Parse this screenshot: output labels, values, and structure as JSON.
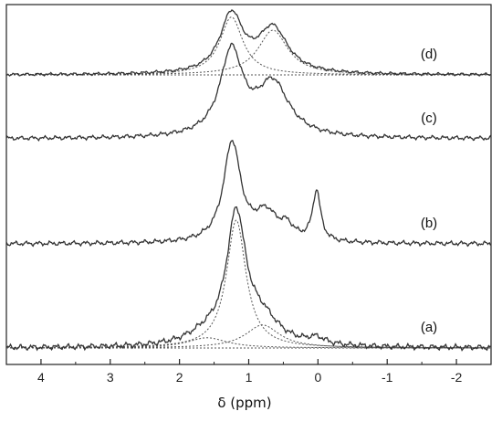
{
  "chart_data": {
    "type": "line",
    "xlabel": "δ (ppm)",
    "xlim": [
      4.5,
      -2.5
    ],
    "x_reversed": true,
    "xticks": [
      4,
      3,
      2,
      1,
      0,
      -1,
      -2
    ],
    "xtick_labels": [
      "4",
      "3",
      "2",
      "1",
      "0",
      "-1",
      "-2"
    ],
    "y_axis_shown": false,
    "grid": false,
    "legend": "none",
    "traces": [
      {
        "label": "(a)",
        "baseline_offset": 0,
        "peaks": [
          {
            "center": 1.18,
            "amplitude": 1.0,
            "width": 0.17
          },
          {
            "center": 0.8,
            "amplitude": 0.18,
            "width": 0.3
          },
          {
            "center": 1.6,
            "amplitude": 0.08,
            "width": 0.35
          },
          {
            "center": 0.02,
            "amplitude": 0.05,
            "width": 0.15
          }
        ],
        "fit_components": [
          {
            "center": 1.18,
            "amplitude": 1.0,
            "width": 0.17
          },
          {
            "center": 0.8,
            "amplitude": 0.18,
            "width": 0.3
          },
          {
            "center": 1.6,
            "amplitude": 0.08,
            "width": 0.35
          }
        ]
      },
      {
        "label": "(b)",
        "baseline_offset": 1,
        "peaks": [
          {
            "center": 1.24,
            "amplitude": 0.95,
            "width": 0.15
          },
          {
            "center": 0.75,
            "amplitude": 0.26,
            "width": 0.2
          },
          {
            "center": 0.45,
            "amplitude": 0.12,
            "width": 0.12
          },
          {
            "center": 0.02,
            "amplitude": 0.48,
            "width": 0.07
          }
        ],
        "fit_components": []
      },
      {
        "label": "(c)",
        "baseline_offset": 2,
        "peaks": [
          {
            "center": 1.25,
            "amplitude": 0.88,
            "width": 0.2
          },
          {
            "center": 0.65,
            "amplitude": 0.55,
            "width": 0.28
          }
        ],
        "fit_components": []
      },
      {
        "label": "(d)",
        "baseline_offset": 3,
        "peaks": [
          {
            "center": 1.25,
            "amplitude": 0.88,
            "width": 0.2
          },
          {
            "center": 0.65,
            "amplitude": 0.68,
            "width": 0.26
          }
        ],
        "fit_components": [
          {
            "center": 1.25,
            "amplitude": 0.88,
            "width": 0.2
          },
          {
            "center": 0.65,
            "amplitude": 0.68,
            "width": 0.26
          }
        ]
      }
    ],
    "colors": {
      "line": "#333333",
      "fit": "#555555",
      "axis": "#222222"
    }
  }
}
